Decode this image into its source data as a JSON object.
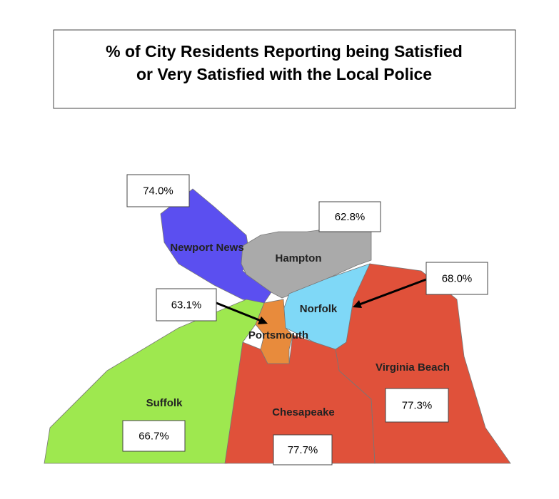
{
  "title_lines": [
    "% of City Residents Reporting being Satisfied",
    "or Very Satisfied with the Local Police"
  ],
  "regions": [
    {
      "name": "Newport News",
      "label": "74.0%"
    },
    {
      "name": "Hampton",
      "label": "62.8%"
    },
    {
      "name": "Norfolk",
      "label": "68.0%"
    },
    {
      "name": "Portsmouth",
      "label": "63.1%"
    },
    {
      "name": "Suffolk",
      "label": "66.7%"
    },
    {
      "name": "Chesapeake",
      "label": "77.7%"
    },
    {
      "name": "Virginia Beach",
      "label": "77.3%"
    }
  ]
}
